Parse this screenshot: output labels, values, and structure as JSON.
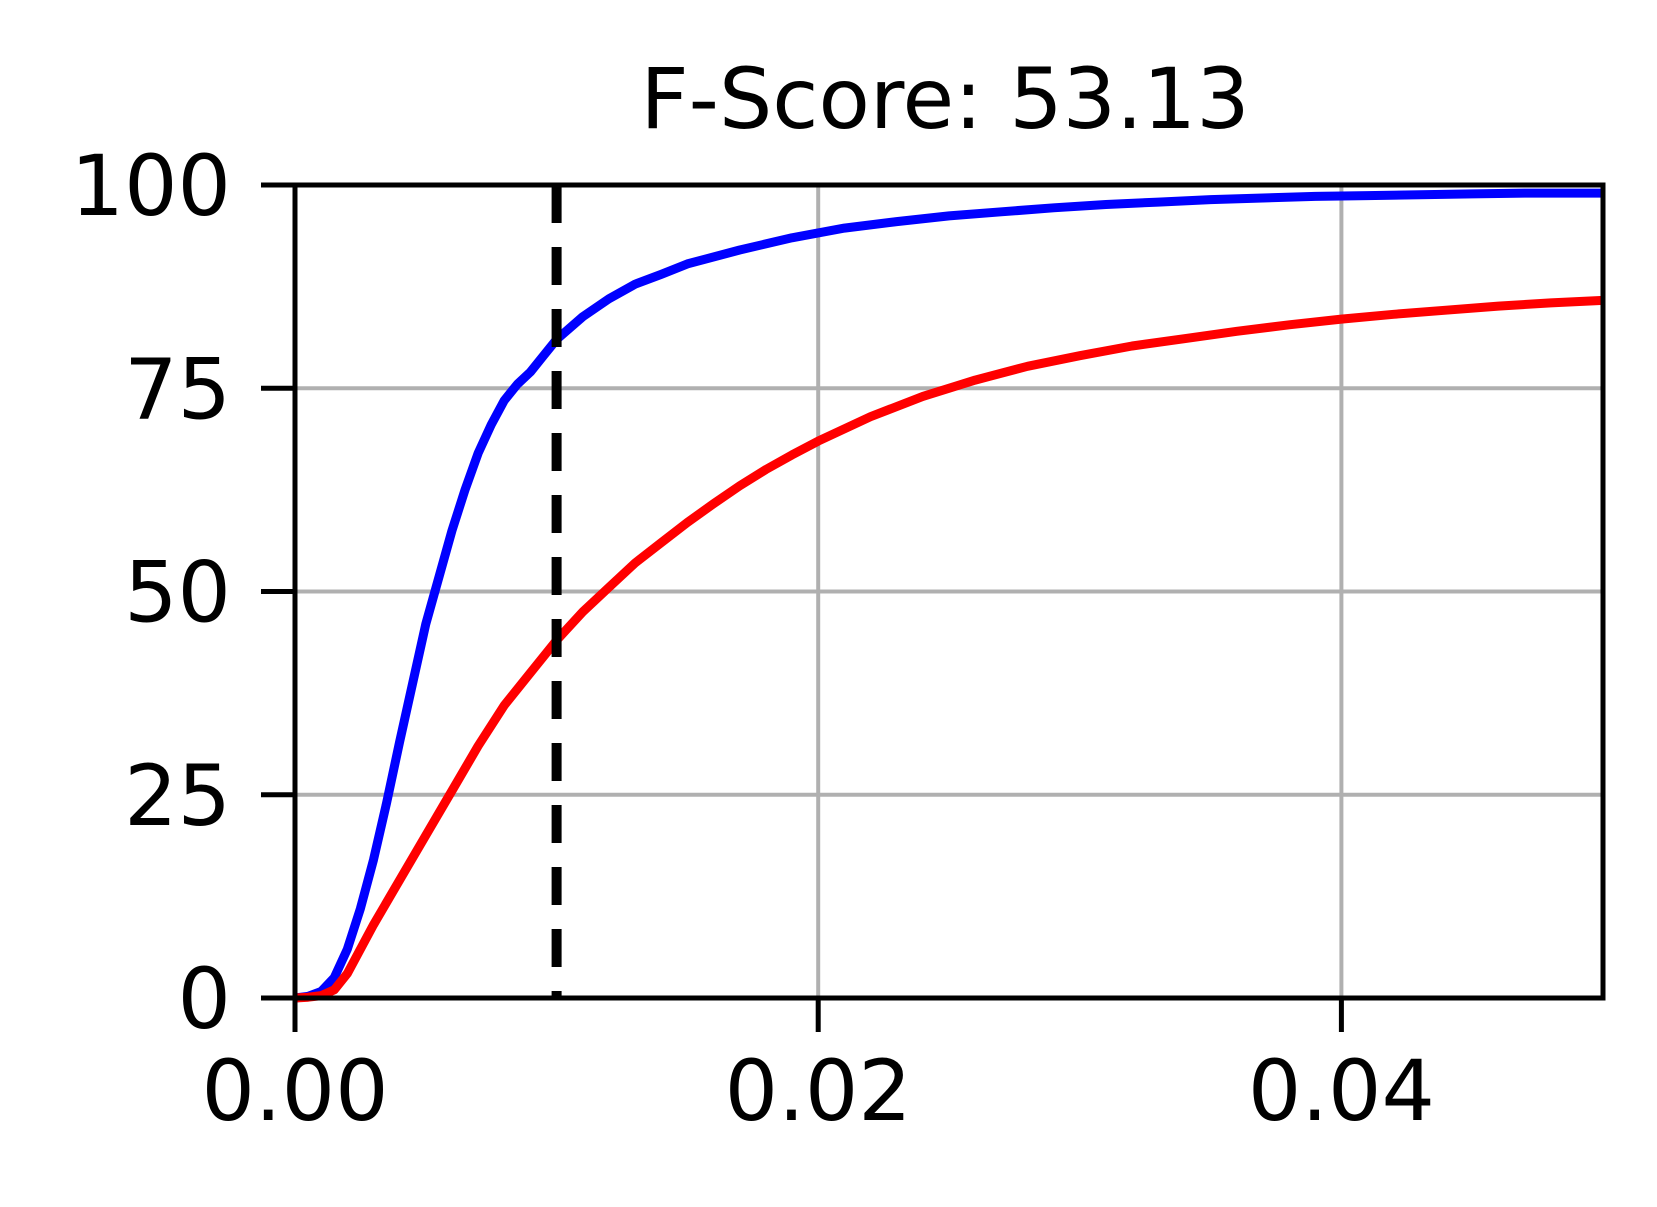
{
  "chart_data": {
    "type": "line",
    "title": "F-Score: 53.13",
    "xlabel": "",
    "ylabel": "",
    "xlim": [
      0.0,
      0.05
    ],
    "ylim": [
      0,
      100
    ],
    "x_ticks": [
      0.0,
      0.02,
      0.04
    ],
    "x_tick_labels": [
      "0.00",
      "0.02",
      "0.04"
    ],
    "y_ticks": [
      0,
      25,
      50,
      75,
      100
    ],
    "y_tick_labels": [
      "0",
      "25",
      "50",
      "75",
      "100"
    ],
    "grid": true,
    "legend": "none",
    "threshold": {
      "x": 0.01,
      "style": "dashed",
      "color": "#000000"
    },
    "series": [
      {
        "color": "#0000ff",
        "x": [
          0.0,
          0.0005,
          0.001,
          0.0015,
          0.002,
          0.0025,
          0.003,
          0.0035,
          0.004,
          0.005,
          0.006,
          0.0065,
          0.007,
          0.0075,
          0.008,
          0.0085,
          0.009,
          0.0095,
          0.01,
          0.011,
          0.012,
          0.013,
          0.014,
          0.015,
          0.017,
          0.019,
          0.021,
          0.023,
          0.025,
          0.027,
          0.029,
          0.031,
          0.033,
          0.035,
          0.037,
          0.039,
          0.041,
          0.043,
          0.045,
          0.047,
          0.049,
          0.05
        ],
        "values": [
          0.0,
          0.2,
          0.8,
          2.5,
          6.0,
          11.0,
          17.0,
          24.0,
          31.5,
          46.0,
          57.5,
          62.5,
          67.0,
          70.5,
          73.5,
          75.5,
          77.0,
          79.0,
          81.0,
          83.8,
          86.0,
          87.8,
          89.0,
          90.3,
          92.0,
          93.5,
          94.7,
          95.5,
          96.2,
          96.7,
          97.2,
          97.6,
          97.9,
          98.2,
          98.4,
          98.6,
          98.7,
          98.8,
          98.9,
          99.0,
          99.0,
          99.0
        ]
      },
      {
        "color": "#ff0000",
        "x": [
          0.0,
          0.0005,
          0.001,
          0.0015,
          0.002,
          0.003,
          0.004,
          0.005,
          0.006,
          0.007,
          0.008,
          0.009,
          0.01,
          0.011,
          0.012,
          0.013,
          0.014,
          0.015,
          0.016,
          0.017,
          0.018,
          0.019,
          0.02,
          0.022,
          0.024,
          0.026,
          0.028,
          0.03,
          0.032,
          0.034,
          0.036,
          0.038,
          0.04,
          0.042,
          0.044,
          0.046,
          0.048,
          0.05
        ],
        "values": [
          0.0,
          0.1,
          0.3,
          1.0,
          3.0,
          9.0,
          14.5,
          20.0,
          25.5,
          31.0,
          36.0,
          40.0,
          44.0,
          47.5,
          50.5,
          53.5,
          56.0,
          58.5,
          60.8,
          63.0,
          65.0,
          66.8,
          68.5,
          71.5,
          74.0,
          76.0,
          77.7,
          79.0,
          80.2,
          81.1,
          82.0,
          82.8,
          83.5,
          84.1,
          84.6,
          85.1,
          85.5,
          85.8
        ]
      }
    ]
  }
}
